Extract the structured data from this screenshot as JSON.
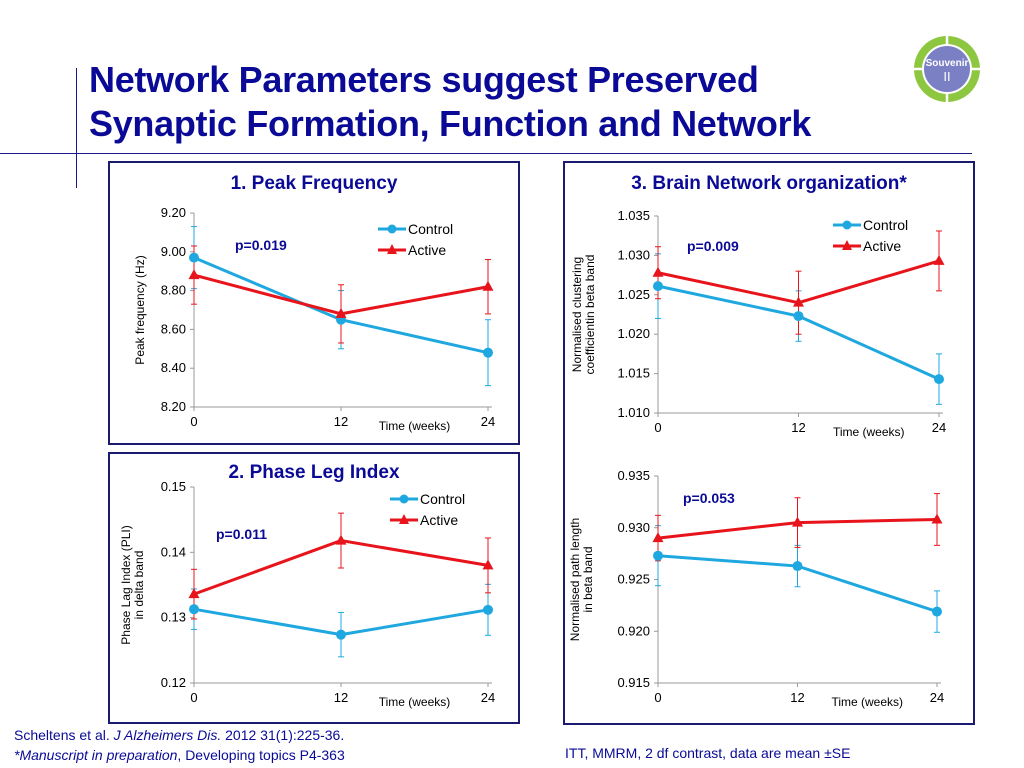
{
  "slide": {
    "title_line1": "Network Parameters suggest Preserved",
    "title_line2": "Synaptic Formation, Function and Network",
    "logo": {
      "text_top": "Souvenir",
      "text_bottom": "II",
      "ring_color": "#8dc63f",
      "center_color": "#7b7fc4"
    }
  },
  "footer": {
    "ref_author": "Scheltens et al. ",
    "ref_journal": "J Alzheimers Dis.",
    "ref_rest": " 2012 31(1):225-36.",
    "note_italic": "*Manuscript in preparation",
    "note_rest": ", Developing topics P4-363",
    "stats_note": "ITT, MMRM, 2 df contrast, data are mean ±SE"
  },
  "panels": {
    "p1": {
      "title": "1. Peak Frequency"
    },
    "p2": {
      "title": "2. Phase Leg Index"
    },
    "p3": {
      "title": "3. Brain Network organization*"
    }
  },
  "colors": {
    "control": "#1fa8e0",
    "active": "#e8141b",
    "pvalue": "#0a0a96"
  },
  "chart_data": [
    {
      "type": "line",
      "title": "1. Peak Frequency",
      "xlabel": "Time (weeks)",
      "ylabel": "Peak frequency (Hz)",
      "x": [
        0,
        12,
        24
      ],
      "xticks": [
        "0",
        "12",
        "24"
      ],
      "ylim": [
        8.2,
        9.2
      ],
      "yticks": [
        "8.20",
        "8.40",
        "8.60",
        "8.80",
        "9.00",
        "9.20"
      ],
      "ytick_values": [
        8.2,
        8.4,
        8.6,
        8.8,
        9.0,
        9.2
      ],
      "annotation": "p=0.019",
      "legend": "top-right",
      "series": [
        {
          "name": "Control",
          "values": [
            8.97,
            8.65,
            8.48
          ],
          "err": [
            0.16,
            0.15,
            0.17
          ]
        },
        {
          "name": "Active",
          "values": [
            8.88,
            8.68,
            8.82
          ],
          "err": [
            0.15,
            0.15,
            0.14
          ]
        }
      ]
    },
    {
      "type": "line",
      "title": "2. Phase Leg Index",
      "xlabel": "Time (weeks)",
      "ylabel": "Phase Lag Index (PLI) in delta band",
      "ylabel_lines": [
        "Phase Lag Index (PLI)",
        "in delta band"
      ],
      "x": [
        0,
        12,
        24
      ],
      "xticks": [
        "0",
        "12",
        "24"
      ],
      "ylim": [
        0.12,
        0.15
      ],
      "yticks": [
        "0.12",
        "0.13",
        "0.14",
        "0.15"
      ],
      "ytick_values": [
        0.12,
        0.13,
        0.14,
        0.15
      ],
      "annotation": "p=0.011",
      "legend": "top-right",
      "series": [
        {
          "name": "Control",
          "values": [
            0.1313,
            0.1274,
            0.1312
          ],
          "err": [
            0.0031,
            0.0034,
            0.0039
          ]
        },
        {
          "name": "Active",
          "values": [
            0.1336,
            0.1418,
            0.138
          ],
          "err": [
            0.0038,
            0.0042,
            0.0042
          ]
        }
      ]
    },
    {
      "type": "line",
      "title": "3. Brain Network organization*",
      "xlabel": "Time (weeks)",
      "ylabel": "Normalised clustering coefficientin beta band",
      "ylabel_lines": [
        "Normalised clustering",
        "coefficientin beta band"
      ],
      "x": [
        0,
        12,
        24
      ],
      "xticks": [
        "0",
        "12",
        "24"
      ],
      "ylim": [
        1.01,
        1.035
      ],
      "yticks": [
        "1.010",
        "1.015",
        "1.020",
        "1.025",
        "1.030",
        "1.035"
      ],
      "ytick_values": [
        1.01,
        1.015,
        1.02,
        1.025,
        1.03,
        1.035
      ],
      "annotation": "p=0.009",
      "legend": "top-right",
      "series": [
        {
          "name": "Control",
          "values": [
            1.0261,
            1.0223,
            1.0143
          ],
          "err": [
            0.0041,
            0.0032,
            0.0032
          ]
        },
        {
          "name": "Active",
          "values": [
            1.0278,
            1.024,
            1.0293
          ],
          "err": [
            0.0033,
            0.004,
            0.0038
          ]
        }
      ]
    },
    {
      "type": "line",
      "title": "",
      "xlabel": "Time (weeks)",
      "ylabel": "Normalised path length in beta band",
      "ylabel_lines": [
        "Normalised path length",
        "in beta band"
      ],
      "x": [
        0,
        12,
        24
      ],
      "xticks": [
        "0",
        "12",
        "24"
      ],
      "ylim": [
        0.915,
        0.935
      ],
      "yticks": [
        "0.915",
        "0.920",
        "0.925",
        "0.930",
        "0.935"
      ],
      "ytick_values": [
        0.915,
        0.92,
        0.925,
        0.93,
        0.935
      ],
      "annotation": "p=0.053",
      "legend": "none",
      "series": [
        {
          "name": "Control",
          "values": [
            0.9273,
            0.9263,
            0.9219
          ],
          "err": [
            0.0029,
            0.002,
            0.002
          ]
        },
        {
          "name": "Active",
          "values": [
            0.929,
            0.9305,
            0.9308
          ],
          "err": [
            0.0022,
            0.0024,
            0.0025
          ]
        }
      ]
    }
  ]
}
